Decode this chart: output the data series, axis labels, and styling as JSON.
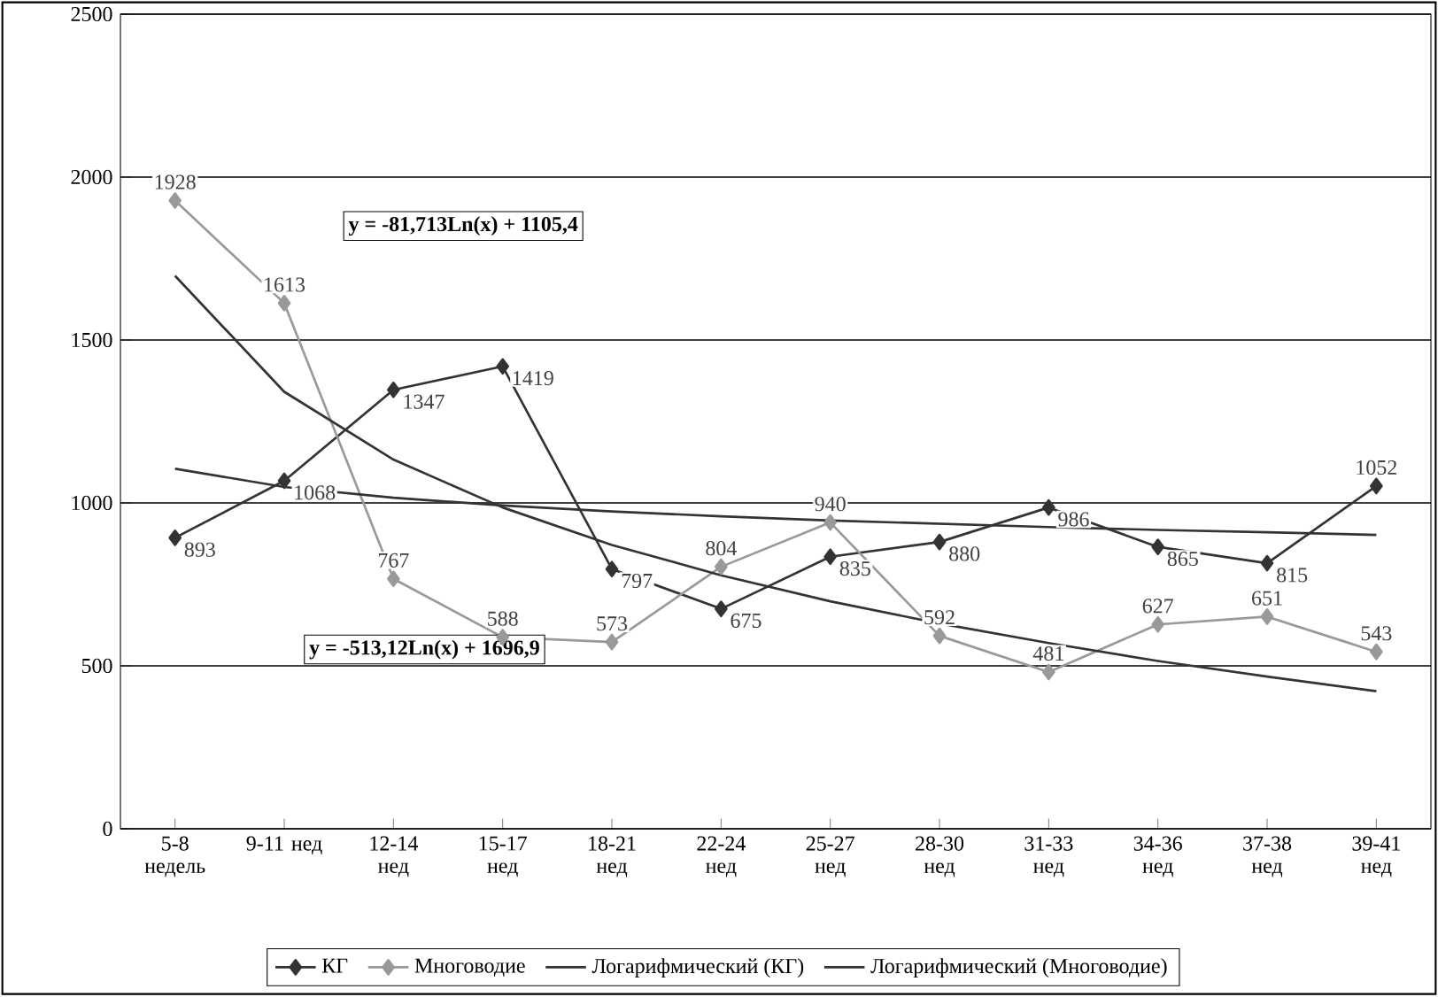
{
  "chart_data": {
    "type": "line",
    "categories": [
      "5-8 недель",
      "9-11 нед",
      "12-14 нед",
      "15-17 нед",
      "18-21 нед",
      "22-24 нед",
      "25-27 нед",
      "28-30 нед",
      "31-33 нед",
      "34-36 нед",
      "37-38 нед",
      "39-41 нед"
    ],
    "series": [
      {
        "name": "КГ",
        "color": "#333333",
        "marker": "diamond",
        "values": [
          893,
          1068,
          1347,
          1419,
          797,
          675,
          835,
          880,
          986,
          865,
          815,
          1052
        ],
        "value_labels": [
          "893",
          "1068",
          "1347",
          "1419",
          "797",
          "675",
          "835",
          "880",
          "986",
          "865",
          "815",
          "1052"
        ]
      },
      {
        "name": "Многоводие",
        "color": "#999999",
        "marker": "diamond",
        "values": [
          1928,
          1613,
          767,
          588,
          573,
          804,
          940,
          592,
          481,
          627,
          651,
          543
        ],
        "value_labels": [
          "1928",
          "1613",
          "767",
          "588",
          "573",
          "804",
          "940",
          "592",
          "481",
          "627",
          "651",
          "543"
        ]
      },
      {
        "name": "Логарифмический (КГ)",
        "color": "#333333",
        "marker": "none",
        "values": [
          1105,
          1049,
          1016,
          992,
          974,
          959,
          946,
          936,
          926,
          917,
          910,
          902
        ]
      },
      {
        "name": "Логарифмический (Многоводие)",
        "color": "#333333",
        "marker": "none",
        "values": [
          1697,
          1341,
          1133,
          986,
          871,
          778,
          698,
          630,
          570,
          515,
          467,
          422
        ]
      }
    ],
    "ylim": [
      0,
      2500
    ],
    "yticks": [
      0,
      500,
      1000,
      1500,
      2000,
      2500
    ],
    "grid": "y",
    "legend": "bottom",
    "annotations": [
      "y = -81,713Ln(x) + 1105,4",
      "y = -513,12Ln(x) + 1696,9"
    ]
  }
}
